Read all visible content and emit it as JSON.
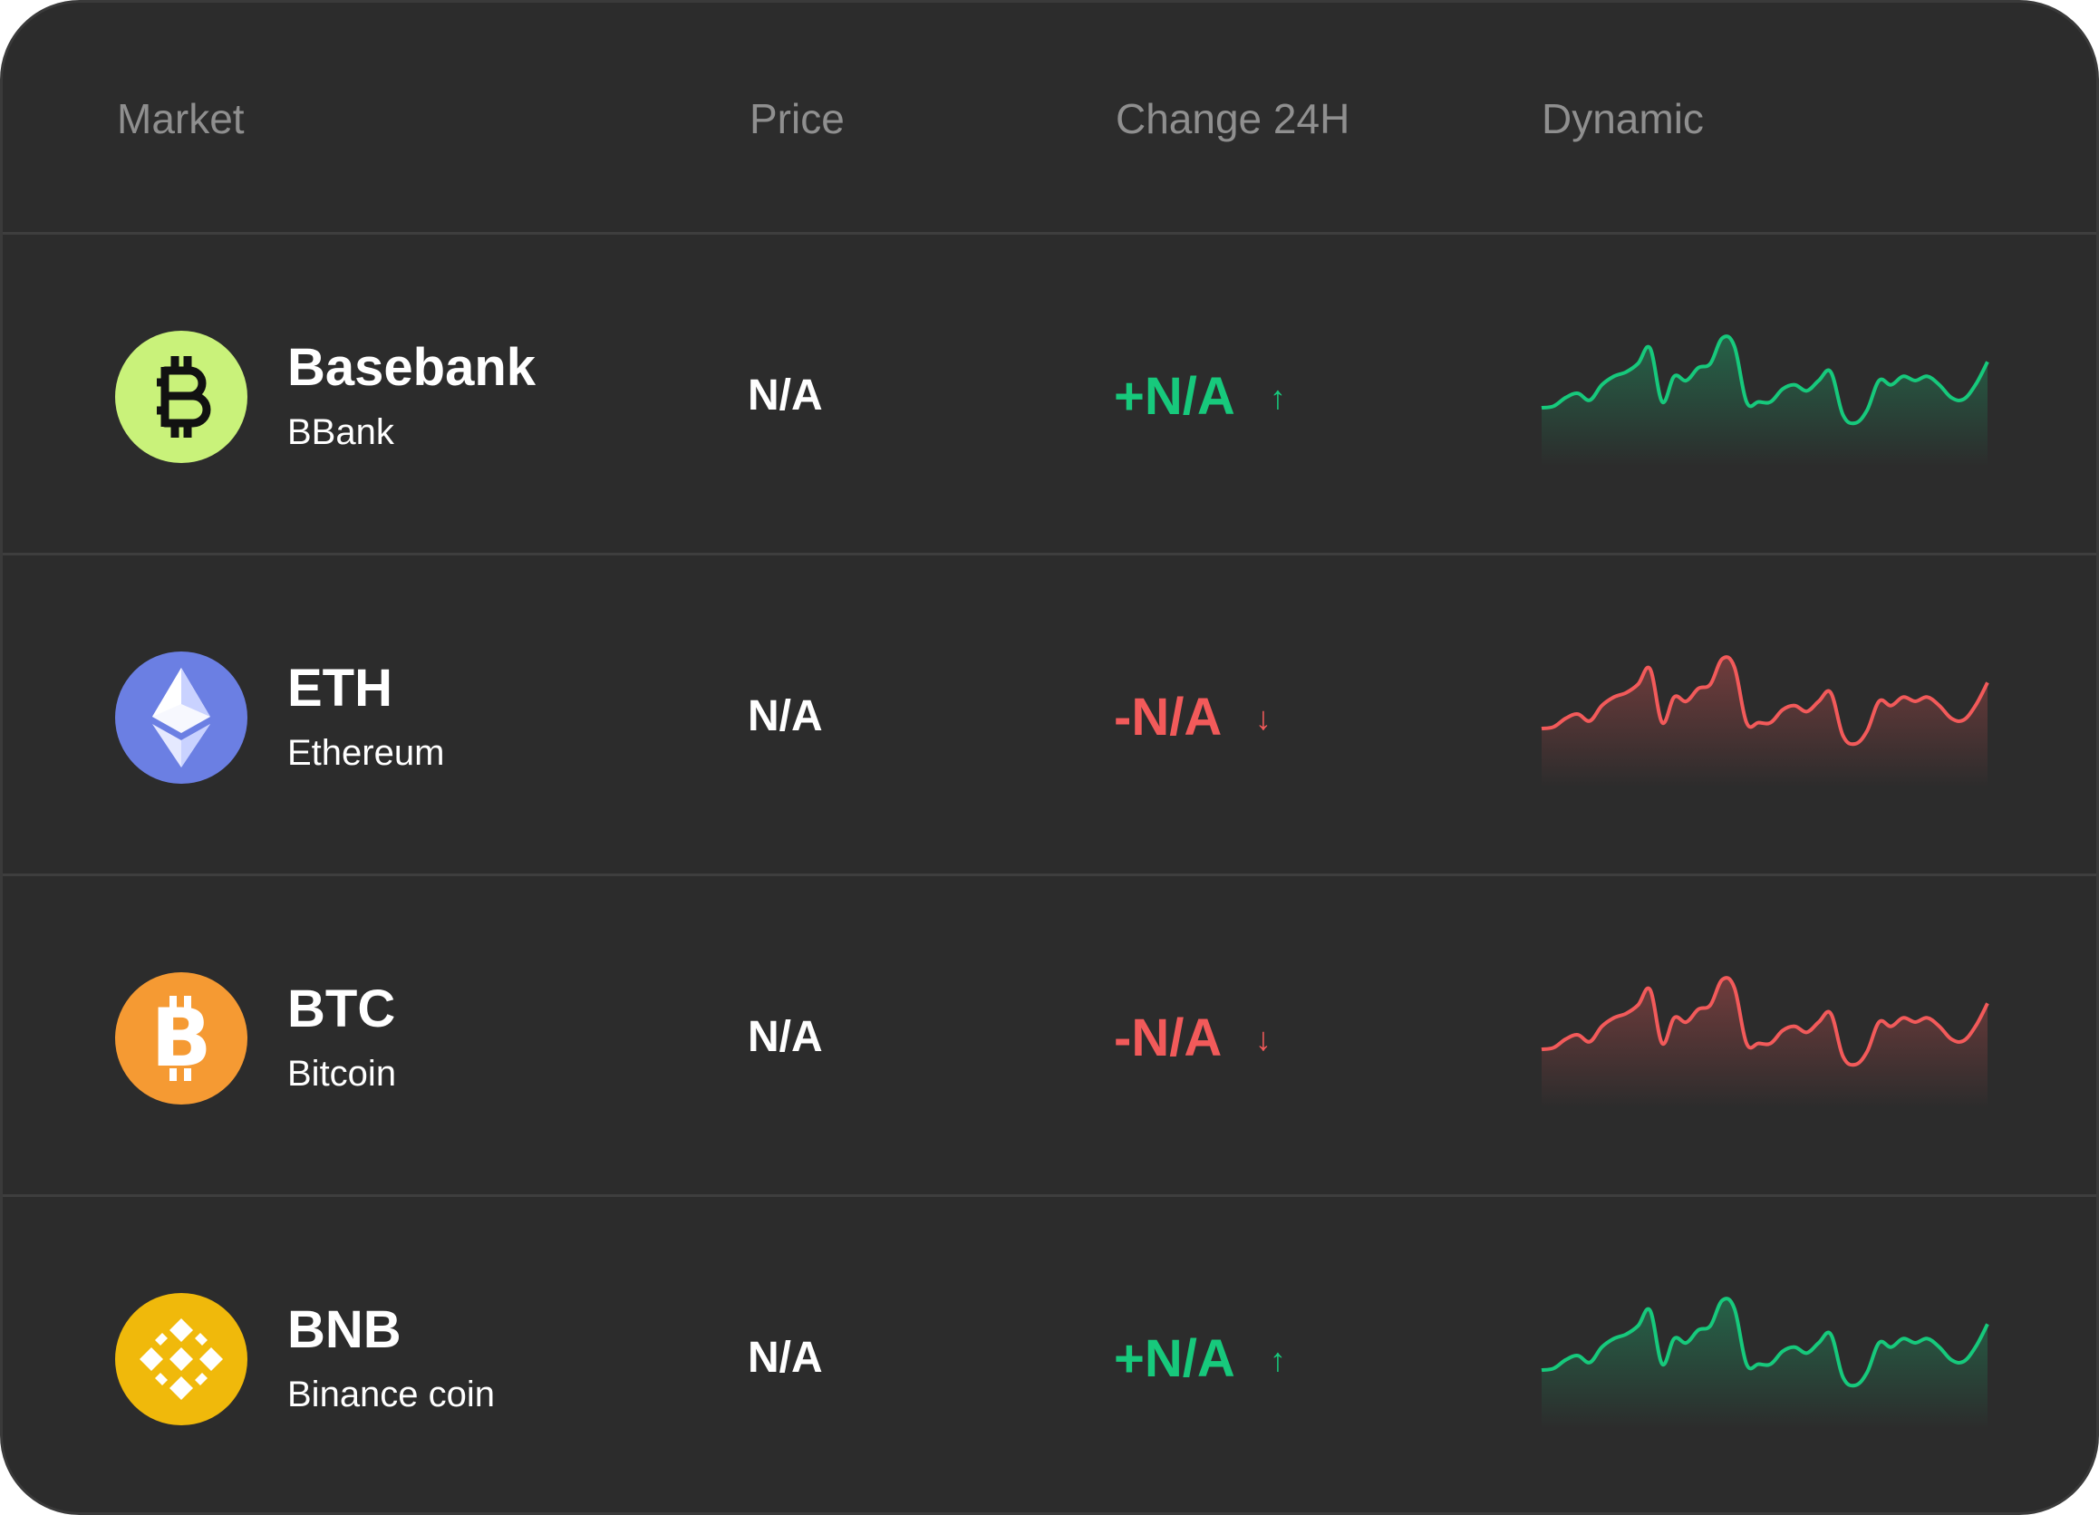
{
  "header": {
    "market_label": "Market",
    "price_label": "Price",
    "change_label": "Change 24H",
    "dynamic_label": "Dynamic"
  },
  "colors": {
    "up": "#17c97c",
    "down": "#f25a5a",
    "background": "#2c2c2c"
  },
  "sparkline": {
    "values": [
      0.18,
      0.2,
      0.3,
      0.35,
      0.27,
      0.45,
      0.55,
      0.6,
      0.7,
      0.88,
      0.25,
      0.55,
      0.5,
      0.65,
      0.7,
      1.0,
      0.9,
      0.25,
      0.25,
      0.25,
      0.4,
      0.45,
      0.38,
      0.5,
      0.6,
      0.1,
      0.0,
      0.15,
      0.5,
      0.45,
      0.55,
      0.5,
      0.55,
      0.45,
      0.3,
      0.28,
      0.45,
      0.72
    ]
  },
  "rows": [
    {
      "name": "Basebank",
      "ticker": "BBank",
      "price": "N/A",
      "change": "+N/A",
      "trend": "up",
      "arrow": "↑",
      "icon": "basebank-icon",
      "icon_color": "#c9f27a"
    },
    {
      "name": "ETH",
      "ticker": "Ethereum",
      "price": "N/A",
      "change": "-N/A",
      "trend": "down",
      "arrow": "↓",
      "icon": "ethereum-icon",
      "icon_color": "#6b7fe3"
    },
    {
      "name": "BTC",
      "ticker": "Bitcoin",
      "price": "N/A",
      "change": "-N/A",
      "trend": "down",
      "arrow": "↓",
      "icon": "bitcoin-icon",
      "icon_color": "#f59a33"
    },
    {
      "name": "BNB",
      "ticker": "Binance coin",
      "price": "N/A",
      "change": "+N/A",
      "trend": "up",
      "arrow": "↑",
      "icon": "binance-icon",
      "icon_color": "#f0b90b"
    }
  ]
}
